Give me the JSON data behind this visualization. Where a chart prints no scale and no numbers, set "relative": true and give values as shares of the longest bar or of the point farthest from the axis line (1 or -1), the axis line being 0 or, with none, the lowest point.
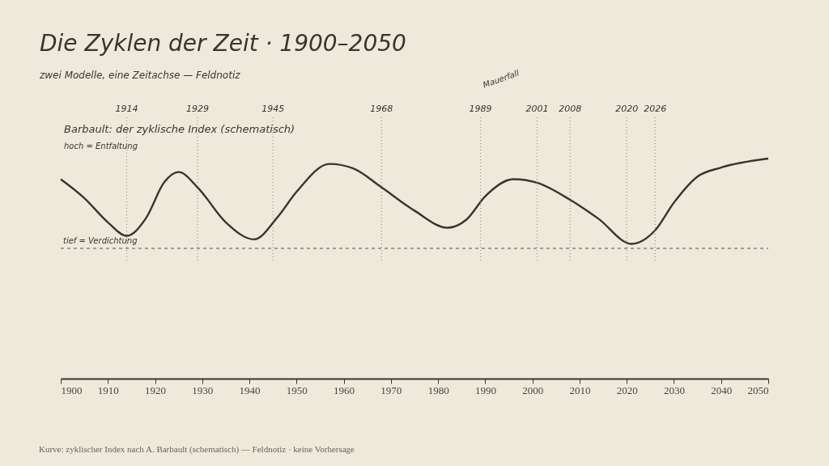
{
  "chart_data": {
    "type": "line",
    "title": "Die Zyklen der Zeit · 1900–2050",
    "subtitle": "zwei Modelle, eine Zeitachse — Feldnotiz",
    "x": [
      1900,
      1905,
      1910,
      1914,
      1918,
      1922,
      1925,
      1929,
      1935,
      1941,
      1946,
      1950,
      1957,
      1962,
      1968,
      1975,
      1982,
      1986,
      1990,
      1996,
      2001,
      2008,
      2014,
      2021,
      2026,
      2030,
      2035,
      2040,
      2050
    ],
    "xlim": [
      1900,
      2050
    ],
    "xticks": [
      1900,
      1910,
      1920,
      1930,
      1940,
      1950,
      1960,
      1970,
      1980,
      1990,
      2000,
      2010,
      2020,
      2030,
      2040,
      2050
    ],
    "relative": true,
    "series": [
      {
        "color": "#3a342e",
        "values": [
          0.77,
          0.56,
          0.29,
          0.14,
          0.33,
          0.74,
          0.85,
          0.68,
          0.29,
          0.1,
          0.35,
          0.63,
          0.94,
          0.89,
          0.68,
          0.42,
          0.23,
          0.32,
          0.58,
          0.77,
          0.73,
          0.54,
          0.33,
          0.05,
          0.2,
          0.51,
          0.8,
          0.9,
          1.0
        ]
      }
    ],
    "ref_lines": [
      {
        "axis": "x",
        "value": 1914,
        "label": "1914",
        "color": "#9a9088",
        "line_style": "dotted"
      },
      {
        "axis": "x",
        "value": 1929,
        "label": "1929",
        "color": "#9a9088",
        "line_style": "dotted"
      },
      {
        "axis": "x",
        "value": 1945,
        "label": "1945",
        "color": "#9a9088",
        "line_style": "dotted"
      },
      {
        "axis": "x",
        "value": 1968,
        "label": "1968",
        "color": "#9a9088",
        "line_style": "dotted"
      },
      {
        "axis": "x",
        "value": 1989,
        "label": "1989",
        "color": "#9a9088",
        "line_style": "dotted"
      },
      {
        "axis": "x",
        "value": 2001,
        "label": "2001",
        "color": "#9a9088",
        "line_style": "dotted"
      },
      {
        "axis": "x",
        "value": 2008,
        "label": "2008",
        "color": "#9a9088",
        "line_style": "dotted"
      },
      {
        "axis": "x",
        "value": 2020,
        "label": "2020",
        "color": "#9a9088",
        "line_style": "dotted"
      },
      {
        "axis": "x",
        "value": 2026,
        "label": "2026",
        "color": "#a08478",
        "line_style": "dotted"
      },
      {
        "axis": "y",
        "value": 0,
        "label": "tief = Verdichtung",
        "color": "#8a8078",
        "line_style": "dashed"
      }
    ],
    "annotations": [
      "Barbault: der zyklische Index (schematisch)",
      "hoch = Entfaltung",
      "Mauerfall",
      "Kurve: zyklischer Index nach A. Barbault (schematisch) — Feldnotiz · keine Vorhersage"
    ],
    "grid": false,
    "marker": "none",
    "line_style": "solid"
  }
}
